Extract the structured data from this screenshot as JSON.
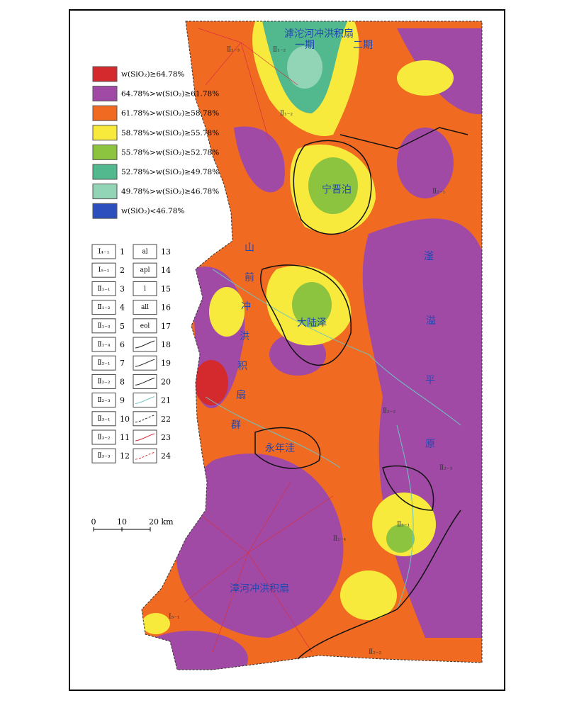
{
  "legend_sio2": [
    {
      "label": "w(SiO₂)≥64.78%",
      "color": "#d42a2e"
    },
    {
      "label": "64.78%>w(SiO₂)≥61.78%",
      "color": "#a04aa6"
    },
    {
      "label": "61.78%>w(SiO₂)≥58.78%",
      "color": "#f06a22"
    },
    {
      "label": "58.78%>w(SiO₂)≥55.78%",
      "color": "#f7ea3c"
    },
    {
      "label": "55.78%>w(SiO₂)≥52.78%",
      "color": "#8cc440"
    },
    {
      "label": "52.78%>w(SiO₂)≥49.78%",
      "color": "#52b98e"
    },
    {
      "label": "49.78%>w(SiO₂)≥46.78%",
      "color": "#92d4b6"
    },
    {
      "label": "w(SiO₂)<46.78%",
      "color": "#2c4fbd"
    }
  ],
  "legend_symbols": [
    {
      "number": 1,
      "label": "Ⅰ₄₋₁"
    },
    {
      "number": 2,
      "label": "Ⅰ₅₋₁"
    },
    {
      "number": 3,
      "label": "Ⅱ₁₋₁"
    },
    {
      "number": 4,
      "label": "Ⅱ₁₋₂"
    },
    {
      "number": 5,
      "label": "Ⅱ₁₋₃"
    },
    {
      "number": 6,
      "label": "Ⅱ₁₋₄"
    },
    {
      "number": 7,
      "label": "Ⅱ₂₋₁"
    },
    {
      "number": 8,
      "label": "Ⅱ₂₋₂"
    },
    {
      "number": 9,
      "label": "Ⅱ₂₋₃"
    },
    {
      "number": 10,
      "label": "Ⅱ₃₋₁"
    },
    {
      "number": 11,
      "label": "Ⅱ₃₋₂"
    },
    {
      "number": 12,
      "label": "Ⅱ₃₋₃"
    },
    {
      "number": 13,
      "label": "al"
    },
    {
      "number": 14,
      "label": "apl"
    },
    {
      "number": 15,
      "label": "l"
    },
    {
      "number": 16,
      "label": "all"
    },
    {
      "number": 17,
      "label": "eol"
    },
    {
      "number": 18
    },
    {
      "number": 19
    },
    {
      "number": 20
    },
    {
      "number": 21
    },
    {
      "number": 22
    },
    {
      "number": 23
    },
    {
      "number": 24
    }
  ],
  "scale_labels": [
    "0",
    "10",
    "20 km"
  ],
  "places": [
    "滹沱河冲洪积扇",
    "一期",
    "二期",
    "宁晋泊",
    "大陆泽",
    "永年洼",
    "山",
    "前",
    "冲",
    "洪",
    "积",
    "扇",
    "群",
    "滏",
    "溢",
    "平",
    "原",
    "漳河冲洪积扇"
  ],
  "zones": [
    "Ⅱ₁₋₃",
    "Ⅱ₁₋₂",
    "Ⅱ₂₋₁",
    "Ⅱ₂₋₂",
    "Ⅱ₁₋₄",
    "Ⅱ₃₋₁",
    "Ⅱ₂₋₃",
    "Ⅱ₂₋₂",
    "Ⅰ₅₋₁",
    "Ⅱ₁₋₂"
  ]
}
